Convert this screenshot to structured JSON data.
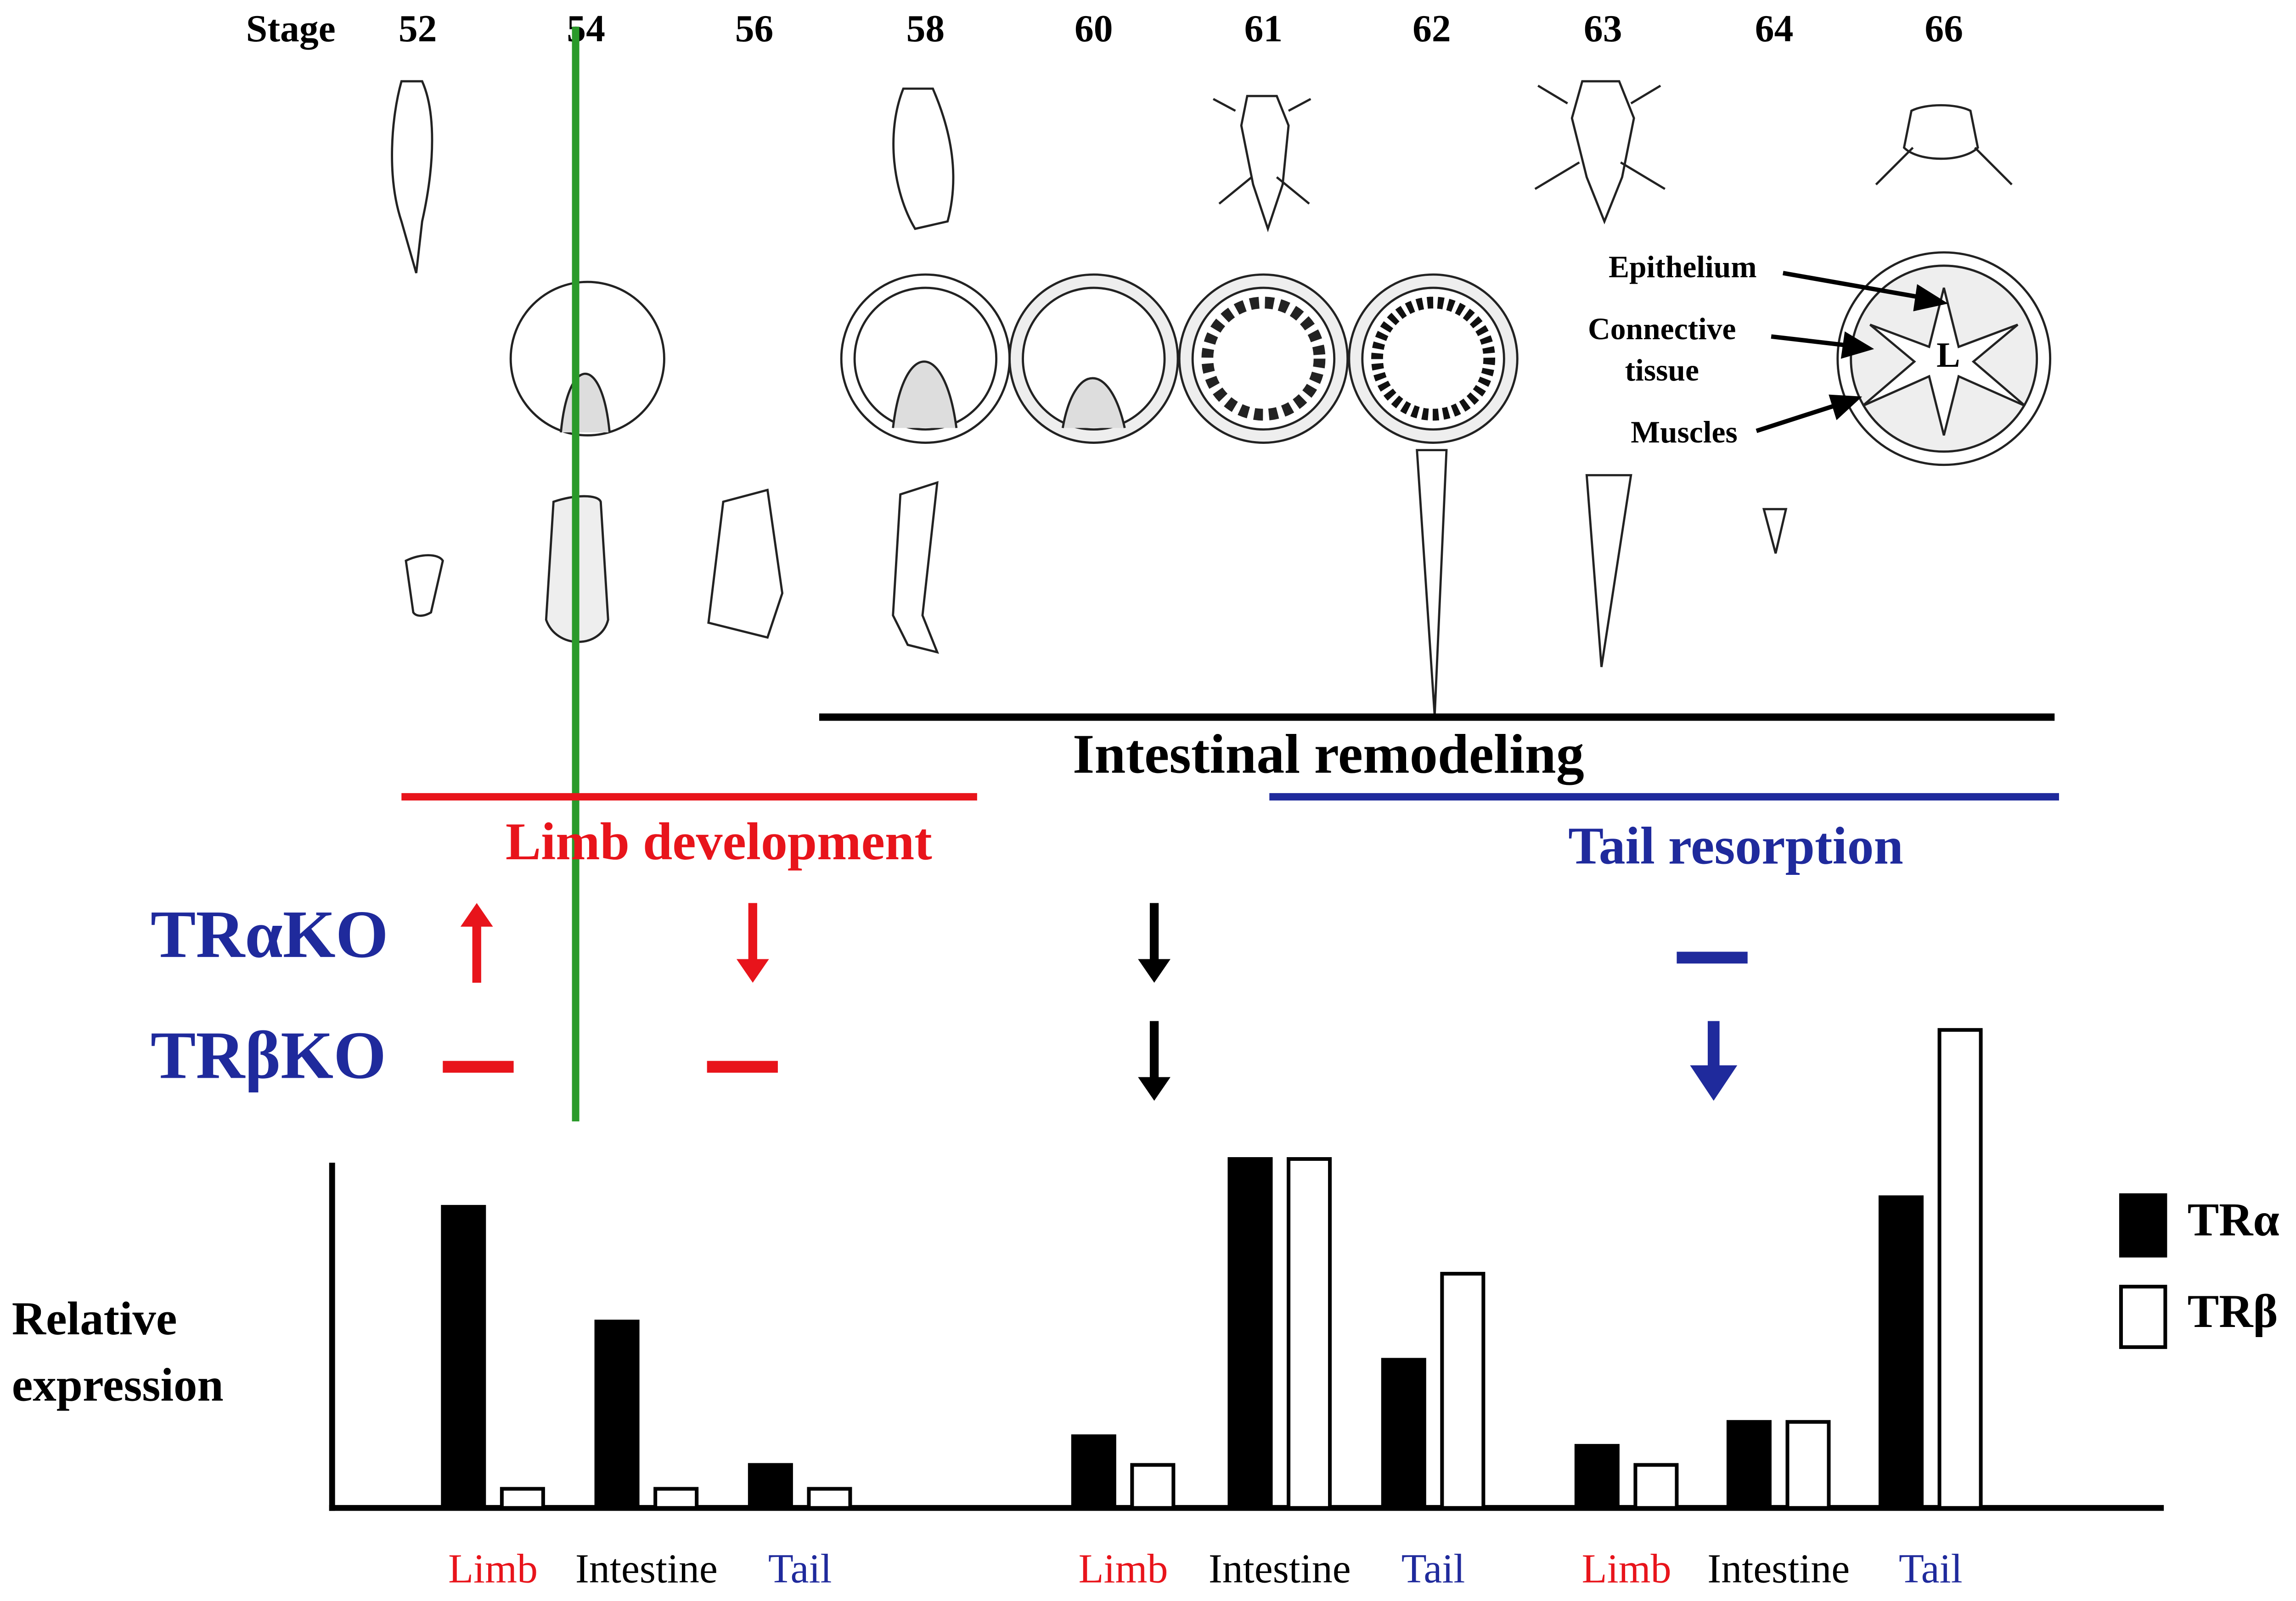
{
  "header": {
    "stage_label": "Stage",
    "stages": [
      "52",
      "54",
      "56",
      "58",
      "60",
      "61",
      "62",
      "63",
      "64",
      "66"
    ]
  },
  "intestine_labels": {
    "epithelium": "Epithelium",
    "connective": [
      "Connective",
      "tissue"
    ],
    "muscles": "Muscles",
    "lumen": "L"
  },
  "processes": {
    "remodeling": "Intestinal remodeling",
    "limb": "Limb development",
    "tail": "Tail resorption"
  },
  "knockouts": [
    "TRαKO",
    "TRβKO"
  ],
  "chart_data": {
    "type": "bar",
    "y_label": [
      "Relative",
      "expression"
    ],
    "categories": [
      "Limb",
      "Intestine",
      "Tail",
      "Limb",
      "Intestine",
      "Tail",
      "Limb",
      "Intestine",
      "Tail"
    ],
    "category_colors": [
      "#e8141b",
      "#000000",
      "#1f2a9c",
      "#e8141b",
      "#000000",
      "#1f2a9c",
      "#e8141b",
      "#000000",
      "#1f2a9c"
    ],
    "series": [
      {
        "name": "TRα",
        "color": "#000000",
        "values": [
          63,
          39,
          9,
          15,
          73,
          31,
          13,
          18,
          65
        ]
      },
      {
        "name": "TRβ",
        "color": "#ffffff",
        "values": [
          4,
          4,
          4,
          9,
          73,
          49,
          9,
          18,
          100
        ]
      }
    ],
    "ylim": [
      0,
      100
    ]
  }
}
